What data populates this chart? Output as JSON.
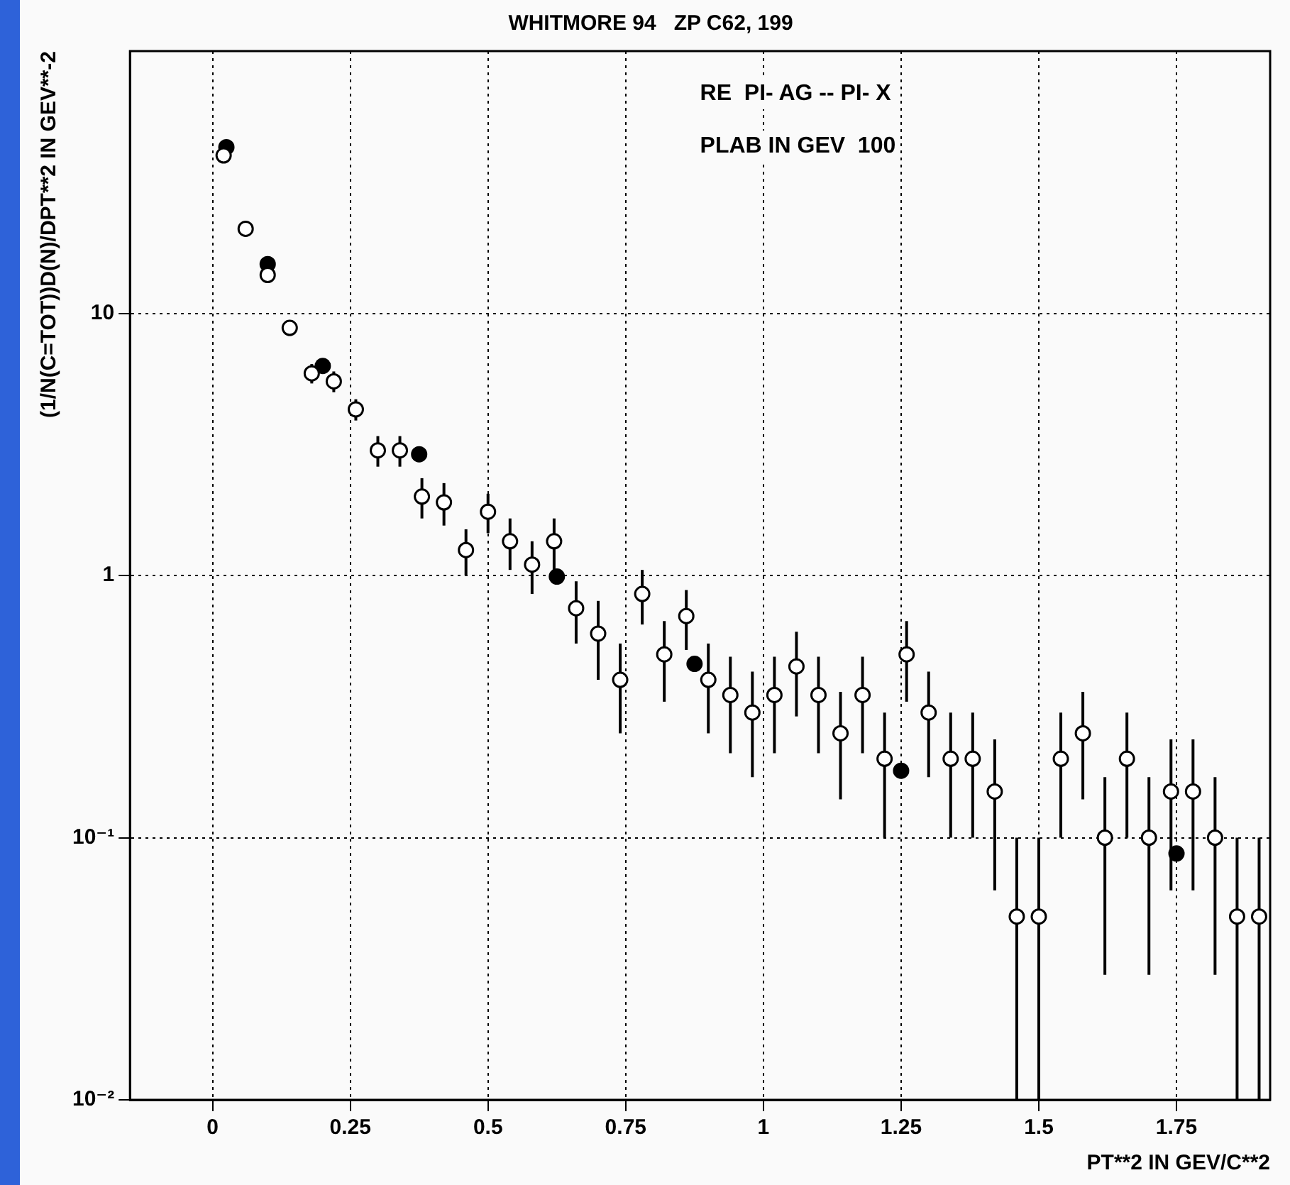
{
  "chart_data": {
    "type": "scatter",
    "title": "WHITMORE 94   ZP C62, 199",
    "xlabel": "PT**2 IN GEV/C**2",
    "ylabel": "(1/N(C=TOT))D(N)/DPT**2 IN GEV**-2",
    "annotations": [
      "RE  PI- AG -- PI- X",
      "PLAB IN GEV  100"
    ],
    "xlim": [
      -0.15,
      1.92
    ],
    "xticks": [
      0,
      0.25,
      0.5,
      0.75,
      1,
      1.25,
      1.5,
      1.75
    ],
    "ylim": [
      0.01,
      100
    ],
    "yticks": [
      {
        "value": 0.01,
        "label": "10⁻²"
      },
      {
        "value": 0.1,
        "label": "10⁻¹"
      },
      1,
      10
    ],
    "log": "y",
    "grid": true,
    "marker": "circle",
    "series": [
      {
        "color": "#ffffff",
        "x": [
          0.02,
          0.06,
          0.1,
          0.14,
          0.18,
          0.22,
          0.26,
          0.3,
          0.34,
          0.38,
          0.42,
          0.46,
          0.5,
          0.54,
          0.58,
          0.62,
          0.66,
          0.7,
          0.74,
          0.78,
          0.82,
          0.86,
          0.9,
          0.94,
          0.98,
          1.02,
          1.06,
          1.1,
          1.14,
          1.18,
          1.22,
          1.26,
          1.3,
          1.34,
          1.38,
          1.42,
          1.46,
          1.5,
          1.54,
          1.58,
          1.62,
          1.66,
          1.7,
          1.74,
          1.78,
          1.82,
          1.86,
          1.9
        ],
        "values": [
          40,
          21,
          14,
          8.8,
          5.9,
          5.5,
          4.3,
          3.0,
          3.0,
          2.0,
          1.9,
          1.25,
          1.75,
          1.35,
          1.1,
          1.35,
          0.75,
          0.6,
          0.4,
          0.85,
          0.5,
          0.7,
          0.4,
          0.35,
          0.3,
          0.35,
          0.45,
          0.35,
          0.25,
          0.35,
          0.2,
          0.5,
          0.3,
          0.2,
          0.2,
          0.15,
          0.05,
          0.05,
          0.2,
          0.25,
          0.1,
          0.2,
          0.1,
          0.15,
          0.15,
          0.1,
          0.05,
          0.05
        ],
        "errors": [
          null,
          null,
          null,
          0.6,
          0.5,
          0.5,
          0.4,
          0.4,
          0.4,
          0.35,
          0.35,
          0.25,
          0.3,
          0.3,
          0.25,
          0.3,
          0.2,
          0.2,
          0.15,
          0.2,
          0.17,
          0.18,
          0.15,
          0.14,
          0.13,
          0.14,
          0.16,
          0.14,
          0.11,
          0.14,
          0.1,
          0.17,
          0.13,
          0.1,
          0.1,
          0.087,
          [
            0.01,
            0.1
          ],
          [
            0.01,
            0.1
          ],
          0.1,
          0.11,
          0.07,
          0.1,
          0.07,
          0.087,
          0.087,
          0.07,
          [
            0.01,
            0.1
          ],
          [
            0.01,
            0.1
          ]
        ]
      },
      {
        "color": "#000000",
        "x": [
          0.025,
          0.1,
          0.2,
          0.375,
          0.625,
          0.875,
          1.25,
          1.75
        ],
        "values": [
          43,
          15.4,
          6.3,
          2.9,
          0.99,
          0.46,
          0.18,
          0.087
        ]
      }
    ]
  }
}
